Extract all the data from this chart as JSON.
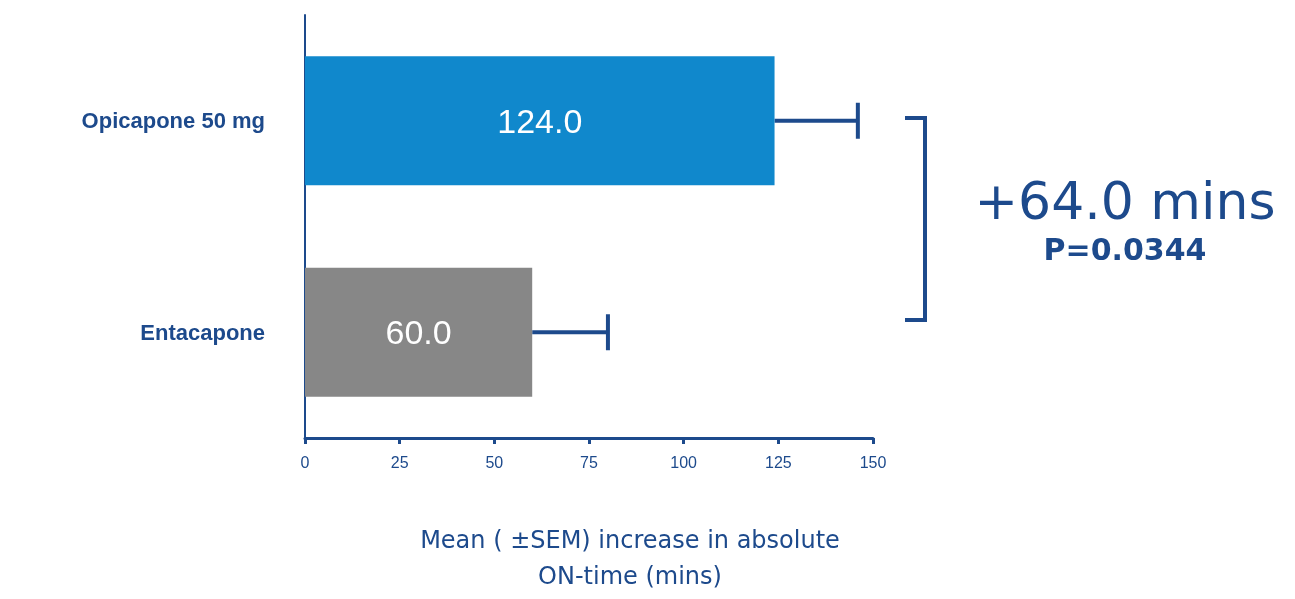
{
  "chart_data": {
    "type": "bar",
    "orientation": "horizontal",
    "categories": [
      "Opicapone 50 mg",
      "Entacapone"
    ],
    "values": [
      124.0,
      60.0
    ],
    "colors": [
      "#1088cc",
      "#878787"
    ],
    "errors": [
      22,
      20
    ],
    "value_labels": [
      "124.0",
      "60.0"
    ],
    "xlabel": "Mean ( ±SEM) increase in absolute ON-time (mins)",
    "xlim": [
      0,
      150
    ],
    "xticks": [
      0,
      25,
      50,
      75,
      100,
      125,
      150
    ],
    "grid": false,
    "annotations": [
      "+64.0 mins",
      "P=0.0344"
    ]
  }
}
